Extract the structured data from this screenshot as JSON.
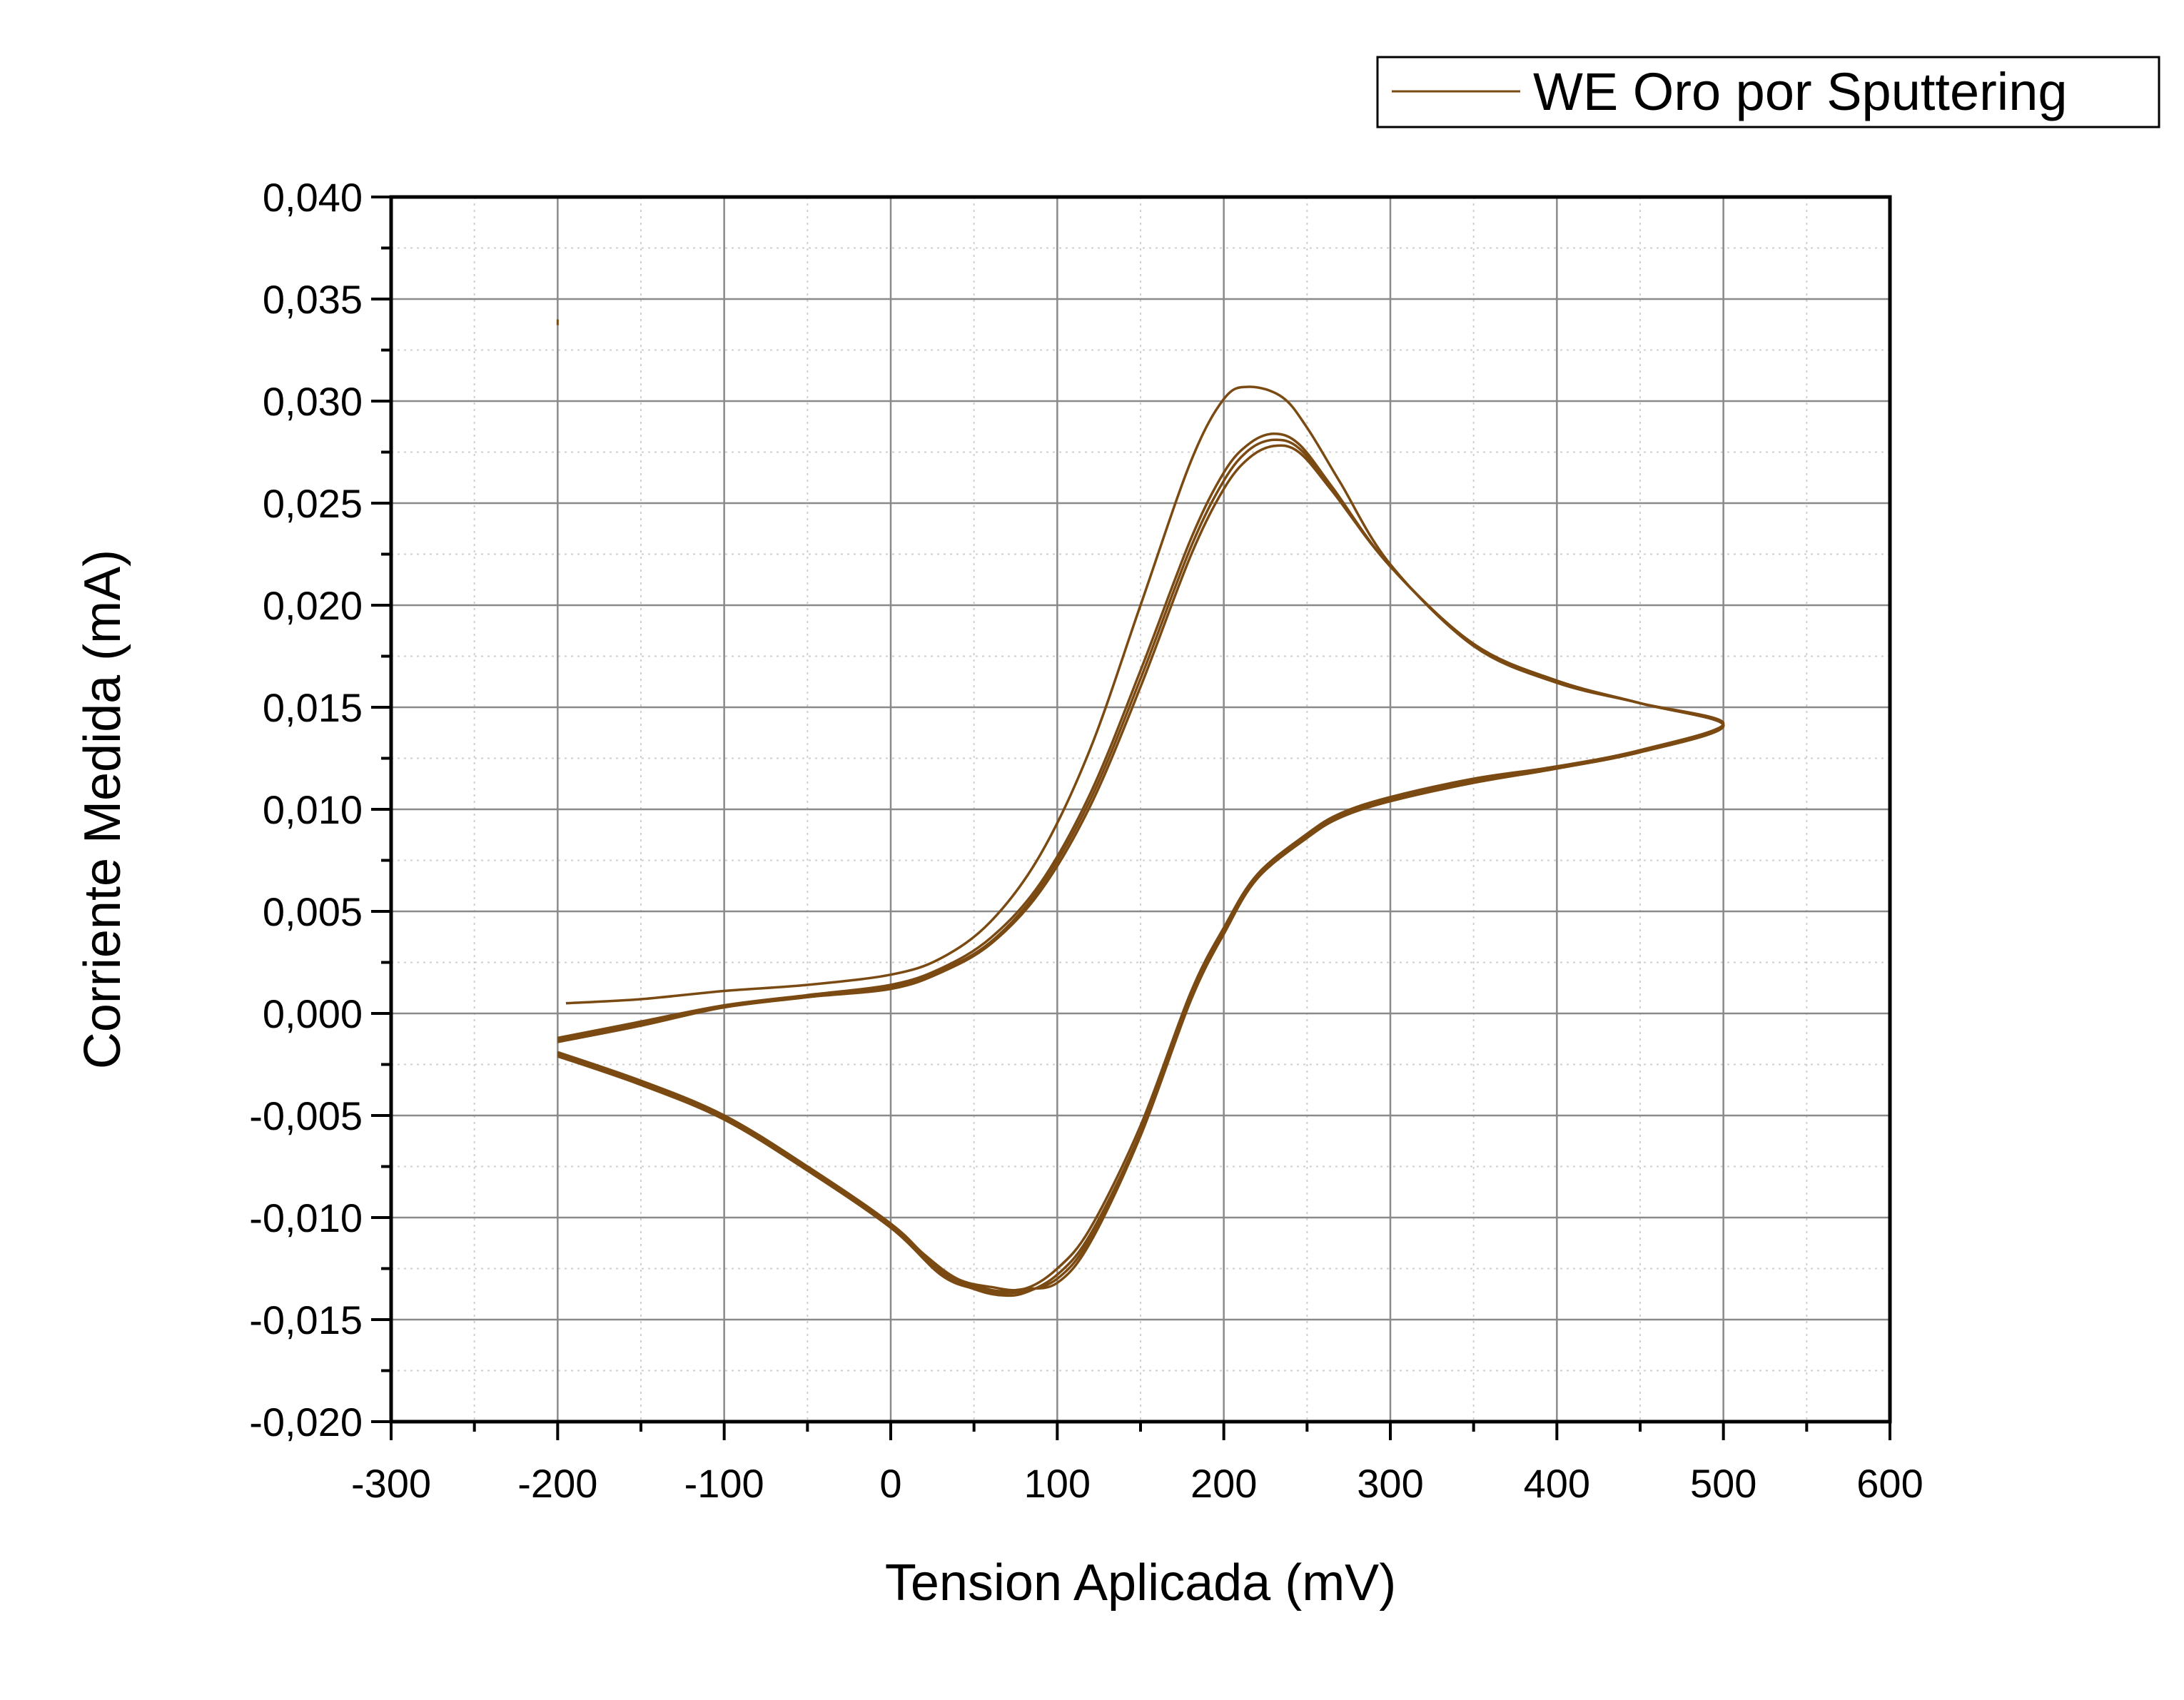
{
  "chart_data": {
    "type": "line",
    "title": "",
    "xlabel": "Tension Aplicada (mV)",
    "ylabel": "Corriente Medida (mA)",
    "xlim": [
      -300,
      600
    ],
    "ylim": [
      -0.02,
      0.04
    ],
    "xticks": [
      -300,
      -200,
      -100,
      0,
      100,
      200,
      300,
      400,
      500,
      600
    ],
    "xtick_labels": [
      "-300",
      "-200",
      "-100",
      "0",
      "100",
      "200",
      "300",
      "400",
      "500",
      "600"
    ],
    "yticks": [
      -0.02,
      -0.015,
      -0.01,
      -0.005,
      0,
      0.005,
      0.01,
      0.015,
      0.02,
      0.025,
      0.03,
      0.035,
      0.04
    ],
    "ytick_labels": [
      "-0,020",
      "-0,015",
      "-0,010",
      "-0,005",
      "0,000",
      "0,005",
      "0,010",
      "0,015",
      "0,020",
      "0,025",
      "0,030",
      "0,035",
      "0,040"
    ],
    "grid": true,
    "legend_position": "top-right",
    "color": "#7a4a12",
    "series": [
      {
        "name": "WE Oro por Sputtering",
        "cycles": [
          {
            "x": [
              -200,
              -195,
              -150,
              -100,
              -50,
              0,
              30,
              60,
              90,
              120,
              150,
              180,
              200,
              215,
              235,
              250,
              270,
              300,
              350,
              400,
              450,
              500,
              450,
              400,
              350,
              300,
              270,
              250,
              220,
              200,
              180,
              150,
              120,
              100,
              80,
              60,
              40,
              20,
              0,
              -50,
              -100,
              -150,
              -200
            ],
            "y": [
              0.034,
              0.0005,
              0.0007,
              0.0011,
              0.0014,
              0.0019,
              0.0027,
              0.0045,
              0.0078,
              0.013,
              0.02,
              0.027,
              0.0301,
              0.0307,
              0.0302,
              0.0287,
              0.026,
              0.022,
              0.018,
              0.0162,
              0.0152,
              0.0142,
              0.0129,
              0.0121,
              0.0115,
              0.0106,
              0.0098,
              0.0088,
              0.0068,
              0.0042,
              0.001,
              -0.0055,
              -0.0105,
              -0.0125,
              -0.0135,
              -0.0134,
              -0.013,
              -0.0118,
              -0.0103,
              -0.0075,
              -0.005,
              -0.0033,
              -0.002
            ]
          },
          {
            "x": [
              -200,
              -150,
              -100,
              -50,
              0,
              30,
              60,
              90,
              120,
              150,
              180,
              200,
              215,
              230,
              245,
              265,
              300,
              350,
              400,
              450,
              500,
              450,
              400,
              350,
              300,
              270,
              250,
              220,
              200,
              180,
              150,
              120,
              100,
              80,
              65,
              50,
              30,
              0,
              -50,
              -100,
              -150,
              -200
            ],
            "y": [
              -0.0012,
              -0.0004,
              0.0004,
              0.0009,
              0.0014,
              0.0022,
              0.0037,
              0.0064,
              0.0108,
              0.0168,
              0.0232,
              0.0265,
              0.0279,
              0.0284,
              0.0279,
              0.0258,
              0.0219,
              0.0181,
              0.0163,
              0.0152,
              0.0141,
              0.0128,
              0.0121,
              0.0114,
              0.0105,
              0.0097,
              0.0087,
              0.0067,
              0.004,
              0.0008,
              -0.0058,
              -0.0108,
              -0.0128,
              -0.0137,
              -0.0138,
              -0.0135,
              -0.0128,
              -0.0105,
              -0.0077,
              -0.0052,
              -0.0035,
              -0.0021
            ]
          },
          {
            "x": [
              -200,
              -150,
              -100,
              -50,
              0,
              30,
              60,
              90,
              120,
              150,
              180,
              200,
              215,
              230,
              245,
              265,
              300,
              350,
              400,
              450,
              500,
              450,
              400,
              350,
              300,
              270,
              250,
              220,
              200,
              180,
              150,
              120,
              100,
              80,
              65,
              50,
              30,
              0,
              -50,
              -100,
              -150,
              -200
            ],
            "y": [
              -0.0013,
              -0.0005,
              0.0003,
              0.0008,
              0.0013,
              0.0021,
              0.0035,
              0.0062,
              0.0105,
              0.0164,
              0.0228,
              0.0261,
              0.0276,
              0.0281,
              0.0277,
              0.0257,
              0.0219,
              0.0181,
              0.0163,
              0.0152,
              0.0141,
              0.0128,
              0.012,
              0.0113,
              0.0104,
              0.0096,
              0.0086,
              0.0066,
              0.0039,
              0.0007,
              -0.0059,
              -0.011,
              -0.013,
              -0.0136,
              -0.0137,
              -0.0134,
              -0.0127,
              -0.0104,
              -0.0076,
              -0.0051,
              -0.0034,
              -0.002
            ]
          },
          {
            "x": [
              -200,
              -150,
              -100,
              -50,
              0,
              30,
              60,
              90,
              120,
              150,
              180,
              200,
              215,
              230,
              245,
              265,
              300,
              350,
              400,
              450,
              500,
              450,
              400,
              350,
              300,
              270,
              250,
              220,
              200,
              180,
              150,
              120,
              100,
              80,
              65,
              50,
              30,
              0,
              -50,
              -100,
              -150,
              -200
            ],
            "y": [
              -0.0014,
              -0.0006,
              0.0003,
              0.0008,
              0.0012,
              0.002,
              0.0034,
              0.006,
              0.0102,
              0.016,
              0.0224,
              0.0257,
              0.0272,
              0.0278,
              0.0275,
              0.0256,
              0.0219,
              0.0181,
              0.0163,
              0.0152,
              0.0141,
              0.0128,
              0.012,
              0.0113,
              0.0104,
              0.0096,
              0.0086,
              0.0066,
              0.0039,
              0.0006,
              -0.006,
              -0.0112,
              -0.0132,
              -0.0135,
              -0.0136,
              -0.0133,
              -0.0126,
              -0.0103,
              -0.0075,
              -0.005,
              -0.0033,
              -0.0019
            ]
          }
        ]
      }
    ]
  }
}
